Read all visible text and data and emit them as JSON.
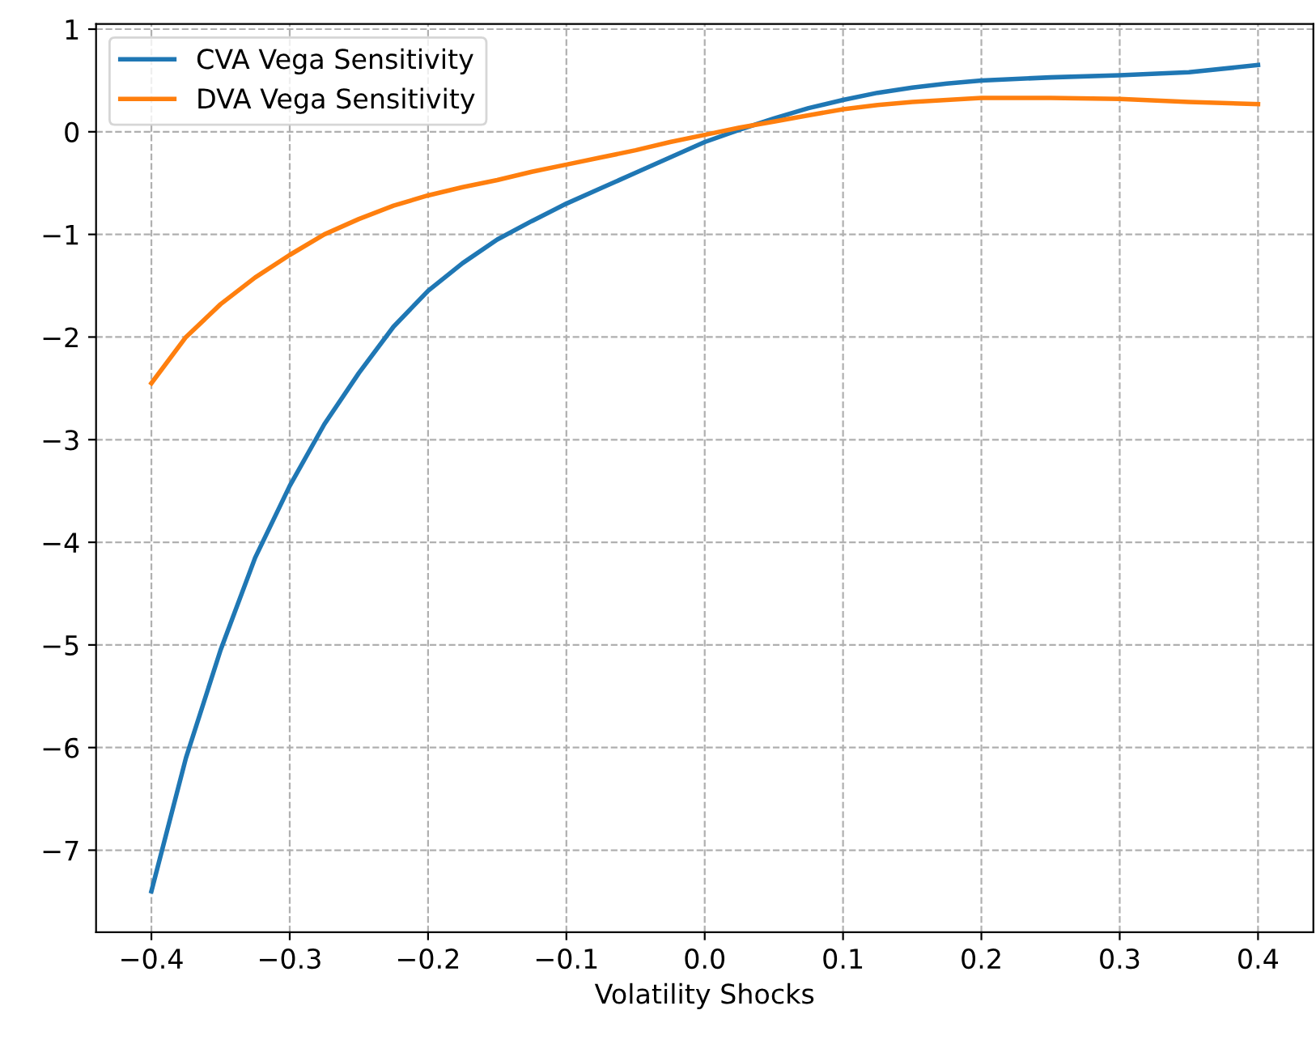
{
  "chart_data": {
    "type": "line",
    "xlabel": "Volatility Shocks",
    "x": [
      -0.4,
      -0.375,
      -0.35,
      -0.325,
      -0.3,
      -0.275,
      -0.25,
      -0.225,
      -0.2,
      -0.175,
      -0.15,
      -0.125,
      -0.1,
      -0.075,
      -0.05,
      -0.025,
      0.0,
      0.025,
      0.05,
      0.075,
      0.1,
      0.125,
      0.15,
      0.175,
      0.2,
      0.25,
      0.3,
      0.35,
      0.4
    ],
    "series": [
      {
        "name": "CVA Vega Sensitivity",
        "color": "#1f77b4",
        "values": [
          -7.4,
          -6.1,
          -5.05,
          -4.15,
          -3.45,
          -2.85,
          -2.35,
          -1.9,
          -1.55,
          -1.28,
          -1.05,
          -0.87,
          -0.7,
          -0.55,
          -0.4,
          -0.25,
          -0.1,
          0.02,
          0.13,
          0.23,
          0.31,
          0.38,
          0.43,
          0.47,
          0.5,
          0.53,
          0.55,
          0.58,
          0.65
        ]
      },
      {
        "name": "DVA Vega Sensitivity",
        "color": "#ff7f0e",
        "values": [
          -2.45,
          -2.0,
          -1.68,
          -1.42,
          -1.2,
          -1.0,
          -0.85,
          -0.72,
          -0.62,
          -0.54,
          -0.47,
          -0.39,
          -0.32,
          -0.25,
          -0.18,
          -0.1,
          -0.03,
          0.04,
          0.1,
          0.16,
          0.22,
          0.26,
          0.29,
          0.31,
          0.33,
          0.33,
          0.32,
          0.29,
          0.27
        ]
      }
    ],
    "xlim": [
      -0.44,
      0.44
    ],
    "ylim": [
      -7.8,
      1.05
    ],
    "xticks": [
      {
        "value": -0.4,
        "label": "−0.4"
      },
      {
        "value": -0.3,
        "label": "−0.3"
      },
      {
        "value": -0.2,
        "label": "−0.2"
      },
      {
        "value": -0.1,
        "label": "−0.1"
      },
      {
        "value": 0.0,
        "label": "0.0"
      },
      {
        "value": 0.1,
        "label": "0.1"
      },
      {
        "value": 0.2,
        "label": "0.2"
      },
      {
        "value": 0.3,
        "label": "0.3"
      },
      {
        "value": 0.4,
        "label": "0.4"
      }
    ],
    "yticks": [
      {
        "value": -7,
        "label": "−7"
      },
      {
        "value": -6,
        "label": "−6"
      },
      {
        "value": -5,
        "label": "−5"
      },
      {
        "value": -4,
        "label": "−4"
      },
      {
        "value": -3,
        "label": "−3"
      },
      {
        "value": -2,
        "label": "−2"
      },
      {
        "value": -1,
        "label": "−1"
      },
      0,
      1
    ],
    "grid": true,
    "legend": "top left",
    "line_style": "solid"
  }
}
